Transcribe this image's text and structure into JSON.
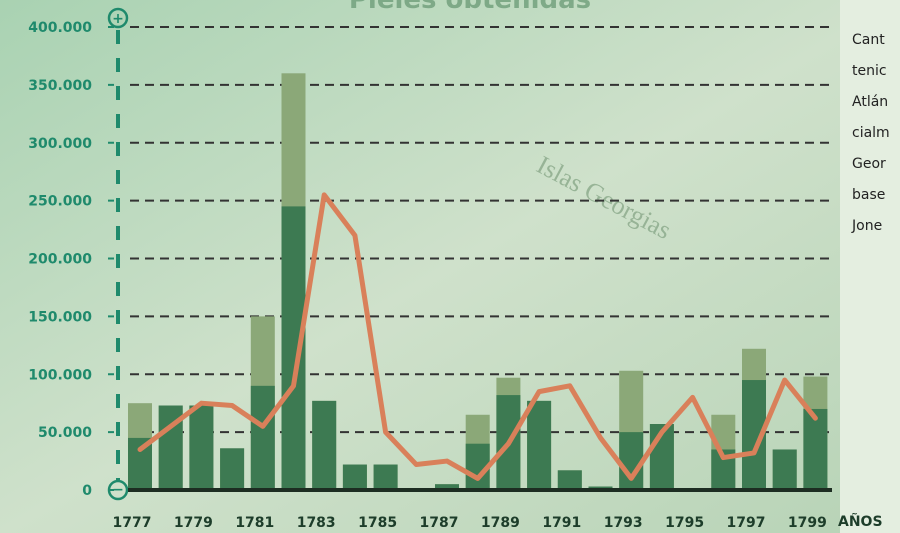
{
  "chart_data": {
    "type": "bar",
    "title": "Pieles obtenidas",
    "background_text": "Islas Georgias",
    "side_text": [
      "Cant",
      "tenic",
      "Atlán",
      "cialm",
      "Geor",
      "base",
      "Jone"
    ],
    "x_label": "AÑOS",
    "categories": [
      "1777",
      null,
      "1779",
      null,
      "1781",
      null,
      "1783",
      null,
      "1785",
      null,
      "1787",
      null,
      "1789",
      null,
      "1791",
      null,
      "1793",
      null,
      "1795",
      null,
      "1797",
      null,
      "1799"
    ],
    "series": [
      {
        "type": "bar",
        "color": "#8ba878",
        "values": [
          75000,
          73000,
          73000,
          36000,
          150000,
          360000,
          77000,
          22000,
          22000,
          0,
          5000,
          65000,
          97000,
          77000,
          17000,
          3000,
          103000,
          57000,
          0,
          65000,
          122000,
          35000,
          98000
        ]
      },
      {
        "type": "bar",
        "color": "#3d7a52",
        "values": [
          45000,
          73000,
          73000,
          36000,
          90000,
          245000,
          77000,
          22000,
          22000,
          0,
          5000,
          40000,
          82000,
          77000,
          17000,
          3000,
          50000,
          57000,
          0,
          35000,
          95000,
          35000,
          70000
        ]
      },
      {
        "type": "line",
        "color": "#d9805a",
        "values": [
          35000,
          55000,
          75000,
          73000,
          55000,
          90000,
          255000,
          220000,
          50000,
          22000,
          25000,
          10000,
          40000,
          85000,
          90000,
          45000,
          10000,
          50000,
          80000,
          28000,
          32000,
          95000,
          62000
        ]
      }
    ],
    "ylim": [
      0,
      400000
    ],
    "yticks": [
      0,
      {
        "value": 50000,
        "label": "50.000"
      },
      {
        "value": 100000,
        "label": "100.000"
      },
      {
        "value": 150000,
        "label": "150.000"
      },
      {
        "value": 200000,
        "label": "200.000"
      },
      {
        "value": 250000,
        "label": "250.000"
      },
      {
        "value": 300000,
        "label": "300.000"
      },
      {
        "value": 350000,
        "label": "350.000"
      },
      {
        "value": 400000,
        "label": "400.000"
      }
    ],
    "grid": true
  }
}
